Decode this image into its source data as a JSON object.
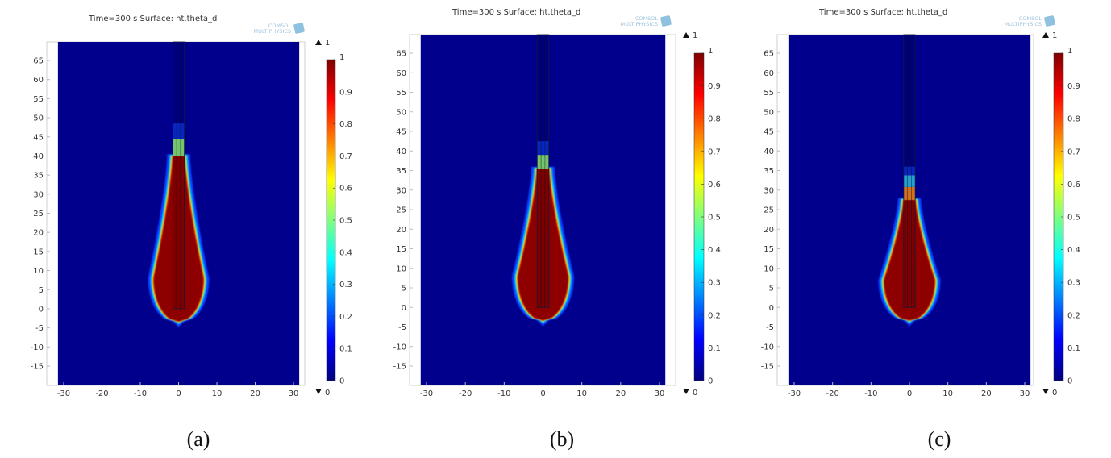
{
  "chart_data": [
    {
      "type": "heatmap",
      "panel_label": "(a)",
      "title": "Time=300 s   Surface: ht.theta_d",
      "logo": [
        "COMSOL",
        "MULTIPHYSICS"
      ],
      "xticks": [
        -30,
        -20,
        -10,
        0,
        10,
        20,
        30
      ],
      "yticks": [
        -15,
        -10,
        -5,
        0,
        5,
        10,
        15,
        20,
        25,
        30,
        35,
        40,
        45,
        50,
        55,
        60,
        65
      ],
      "xlim": [
        -31.5,
        31.5
      ],
      "ylim": [
        -19,
        69.5
      ],
      "colorbar": {
        "min": 0,
        "max": 1,
        "ticks": [
          0,
          0.1,
          0.2,
          0.3,
          0.4,
          0.5,
          0.6,
          0.7,
          0.8,
          0.9,
          1
        ],
        "max_label": "1",
        "min_label": "0",
        "colormap": "jet"
      },
      "plume": {
        "bottom": -3.3,
        "max_halfwidth": 6.5,
        "widest_at": 8,
        "tip": 40
      },
      "needle_bands": [
        {
          "from": 40,
          "to": 44.5,
          "color": "#86e07a"
        },
        {
          "from": 44.5,
          "to": 48.5,
          "color": "#0a2cd8"
        }
      ]
    },
    {
      "type": "heatmap",
      "panel_label": "(b)",
      "title": "Time=300 s   Surface: ht.theta_d",
      "logo": [
        "COMSOL",
        "MULTIPHYSICS"
      ],
      "xticks": [
        -30,
        -20,
        -10,
        0,
        10,
        20,
        30
      ],
      "yticks": [
        -15,
        -10,
        -5,
        0,
        5,
        10,
        15,
        20,
        25,
        30,
        35,
        40,
        45,
        50,
        55,
        60,
        65
      ],
      "xlim": [
        -31.5,
        31.5
      ],
      "ylim": [
        -19,
        69.5
      ],
      "colorbar": {
        "min": 0,
        "max": 1,
        "ticks": [
          0,
          0.1,
          0.2,
          0.3,
          0.4,
          0.5,
          0.6,
          0.7,
          0.8,
          0.9,
          1
        ],
        "max_label": "1",
        "min_label": "0",
        "colormap": "jet"
      },
      "plume": {
        "bottom": -3.3,
        "max_halfwidth": 6.5,
        "widest_at": 8,
        "tip": 35.5
      },
      "needle_bands": [
        {
          "from": 35.5,
          "to": 39,
          "color": "#86e07a"
        },
        {
          "from": 39,
          "to": 42.5,
          "color": "#0a2cd8"
        }
      ]
    },
    {
      "type": "heatmap",
      "panel_label": "(c)",
      "title": "Time=300 s   Surface: ht.theta_d",
      "logo": [
        "COMSOL",
        "MULTIPHYSICS"
      ],
      "xticks": [
        -30,
        -20,
        -10,
        0,
        10,
        20,
        30
      ],
      "yticks": [
        -15,
        -10,
        -5,
        0,
        5,
        10,
        15,
        20,
        25,
        30,
        35,
        40,
        45,
        50,
        55,
        60,
        65
      ],
      "xlim": [
        -31.5,
        31.5
      ],
      "ylim": [
        -19,
        69.5
      ],
      "colorbar": {
        "min": 0,
        "max": 1,
        "ticks": [
          0,
          0.1,
          0.2,
          0.3,
          0.4,
          0.5,
          0.6,
          0.7,
          0.8,
          0.9,
          1
        ],
        "max_label": "1",
        "min_label": "0",
        "colormap": "jet"
      },
      "plume": {
        "bottom": -3.3,
        "max_halfwidth": 6.6,
        "widest_at": 7,
        "tip": 27.5
      },
      "needle_bands": [
        {
          "from": 27.5,
          "to": 30.8,
          "color": "#f08020"
        },
        {
          "from": 30.8,
          "to": 33.8,
          "color": "#2ab8f0"
        },
        {
          "from": 33.8,
          "to": 36,
          "color": "#0a2cd8"
        }
      ]
    }
  ]
}
